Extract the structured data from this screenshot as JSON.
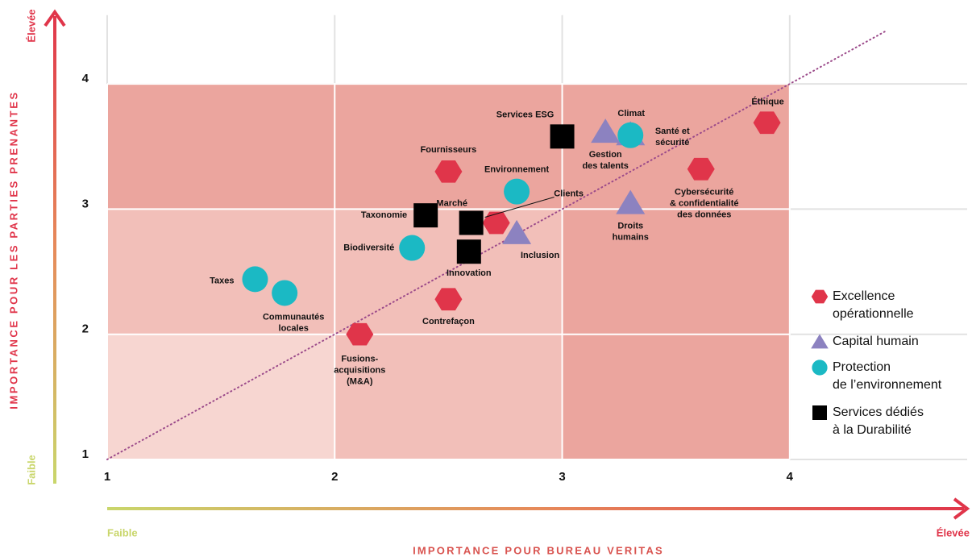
{
  "chart_data": {
    "type": "scatter",
    "x_label": "IMPORTANCE POUR BUREAU VERITAS",
    "y_label": "IMPORTANCE POUR LES PARTIES PRENANTES",
    "x_low": "Faible",
    "x_high": "Élevée",
    "y_low": "Faible",
    "y_high": "Élevée",
    "xlim": [
      1,
      4.78
    ],
    "ylim": [
      1,
      4.55
    ],
    "xticks": [
      1,
      2,
      3,
      4
    ],
    "yticks": [
      1,
      2,
      3,
      4
    ],
    "grid": true,
    "legend": "right",
    "trend_line": {
      "x": [
        1,
        4.42
      ],
      "y": [
        1,
        4.42
      ],
      "color": "#9b4a8a"
    },
    "zones": [
      {
        "x": [
          1,
          4
        ],
        "y": [
          1,
          4
        ],
        "color": "#eba59e"
      },
      {
        "x": [
          1,
          3
        ],
        "y": [
          1,
          3
        ],
        "color": "#f2bfb9"
      },
      {
        "x": [
          1,
          2
        ],
        "y": [
          1,
          2
        ],
        "color": "#f7d6d1"
      }
    ],
    "series": [
      {
        "name": [
          "Excellence",
          "opérationnelle"
        ],
        "marker": "hexagon",
        "color": "#e0354a",
        "x": [
          2.5,
          2.71,
          2.5,
          2.11,
          3.61,
          3.9
        ],
        "y": [
          3.3,
          2.89,
          2.28,
          2.0,
          3.32,
          3.69
        ],
        "labels": [
          [
            "Fournisseurs"
          ],
          [
            "Marché"
          ],
          [
            "Contrefaçon"
          ],
          [
            "Fusions-",
            "acquisitions",
            "(M&A)"
          ],
          [
            "Cybersécurité",
            "& confidentialité",
            "des données"
          ],
          [
            "Éthique"
          ]
        ]
      },
      {
        "name": [
          "Capital humain"
        ],
        "marker": "triangle",
        "color": "#8c82c0",
        "x": [
          3.19,
          3.3,
          2.8,
          3.3
        ],
        "y": [
          3.62,
          3.05,
          2.81,
          3.6
        ],
        "labels": [
          [
            "Gestion",
            "des talents"
          ],
          [
            "Droits",
            "humains"
          ],
          [
            "Inclusion"
          ],
          [
            "Santé et",
            "sécurité"
          ]
        ]
      },
      {
        "name": [
          "Protection",
          "de l’environnement"
        ],
        "marker": "circle",
        "color": "#1bb9c4",
        "x": [
          3.3,
          2.8,
          2.34,
          1.65,
          1.78
        ],
        "y": [
          3.59,
          3.14,
          2.69,
          2.44,
          2.33
        ],
        "labels": [
          [
            "Climat"
          ],
          [
            "Environnement"
          ],
          [
            "Biodiversité"
          ],
          [
            "Taxes"
          ],
          [
            "Communautés",
            "locales"
          ]
        ]
      },
      {
        "name": [
          "Services dédiés",
          "à la Durabilité"
        ],
        "marker": "square",
        "color": "#000000",
        "x": [
          3.0,
          2.4,
          2.6,
          2.59
        ],
        "y": [
          3.58,
          2.95,
          2.89,
          2.66
        ],
        "labels": [
          [
            "Services ESG"
          ],
          [
            "Taxonomie"
          ],
          [
            "Clients"
          ],
          [
            "Innovation"
          ]
        ]
      }
    ]
  }
}
